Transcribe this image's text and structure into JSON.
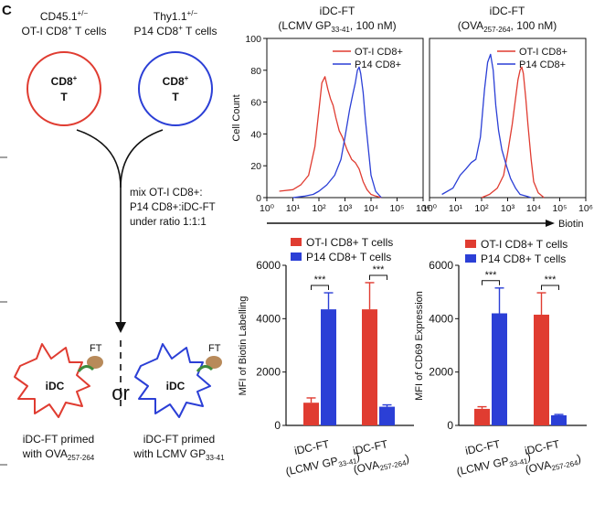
{
  "panel_letter": "C",
  "schematic": {
    "cell_left": {
      "line1": "CD45.1",
      "line1_sup": "+/−",
      "line2": "OT-I CD8",
      "line2_sup": "+",
      "line2_tail": " T cells",
      "inner1": "CD8",
      "inner_sup": "+",
      "inner2": "T",
      "color": "#e03c31"
    },
    "cell_right": {
      "line1": "Thy1.1",
      "line1_sup": "+/−",
      "line2": "P14 CD8",
      "line2_sup": "+",
      "line2_tail": " T cells",
      "inner1": "CD8",
      "inner_sup": "+",
      "inner2": "T",
      "color": "#2b3fd6"
    },
    "mix_text": [
      "mix OT-I CD8+:",
      "P14 CD8+:iDC-FT",
      "under ratio 1:1:1"
    ],
    "or_text": "or",
    "dc_left": {
      "label": "iDC",
      "ft": "FT",
      "cap1": "iDC-FT primed",
      "cap2": "with OVA",
      "cap2_sub": "257-264",
      "color": "#e03c31"
    },
    "dc_right": {
      "label": "iDC",
      "ft": "FT",
      "cap1": "iDC-FT primed",
      "cap2": "with LCMV GP",
      "cap2_sub": "33-41",
      "color": "#2b3fd6"
    }
  },
  "chart_data": [
    {
      "type": "line",
      "title": "iDC-FT",
      "subtitle": "(LCMV GP33-41, 100 nM)",
      "subtitle_parts": {
        "pre": "(LCMV GP",
        "sub": "33-41",
        "post": ", 100 nM)"
      },
      "ylabel": "Cell Count",
      "xlabel": "Biotin",
      "x_scale": "log",
      "xlim": [
        1,
        1000000
      ],
      "ylim": [
        0,
        100
      ],
      "yticks": [
        0,
        20,
        40,
        60,
        80,
        100
      ],
      "xtick_labels": [
        "10⁰",
        "10¹",
        "10²",
        "10³",
        "10⁴",
        "10⁵",
        "10⁶"
      ],
      "legend_position": "top-right",
      "series": [
        {
          "name": "OT-I CD8+",
          "color": "#e03c31",
          "x": [
            3,
            10,
            20,
            40,
            70,
            100,
            130,
            170,
            220,
            280,
            350,
            450,
            600,
            800,
            1200,
            1800,
            2500,
            3500,
            5000,
            7000,
            10000,
            15000,
            25000
          ],
          "y": [
            4,
            5,
            8,
            14,
            32,
            55,
            72,
            76,
            68,
            62,
            58,
            50,
            42,
            38,
            30,
            24,
            22,
            18,
            10,
            5,
            2,
            1,
            0
          ]
        },
        {
          "name": "P14 CD8+",
          "color": "#2b3fd6",
          "x": [
            10,
            30,
            60,
            100,
            200,
            400,
            700,
            1000,
            1500,
            2000,
            2500,
            3000,
            3500,
            4000,
            5000,
            6000,
            8000,
            10000,
            15000,
            25000
          ],
          "y": [
            0,
            1,
            2,
            4,
            8,
            14,
            24,
            38,
            55,
            65,
            72,
            80,
            82,
            78,
            66,
            50,
            30,
            14,
            4,
            0
          ]
        }
      ]
    },
    {
      "type": "line",
      "title": "iDC-FT",
      "subtitle": "(OVA257-264, 100 nM)",
      "subtitle_parts": {
        "pre": "(OVA",
        "sub": "257-264",
        "post": ", 100 nM)"
      },
      "x_scale": "log",
      "xlim": [
        1,
        1000000
      ],
      "ylim": [
        0,
        100
      ],
      "legend_position": "top-right",
      "series": [
        {
          "name": "OT-I CD8+",
          "color": "#e03c31",
          "x": [
            100,
            200,
            400,
            700,
            1000,
            1500,
            2000,
            2500,
            3000,
            3500,
            4000,
            5000,
            6000,
            8000,
            10000,
            15000,
            25000
          ],
          "y": [
            0,
            2,
            6,
            14,
            28,
            46,
            62,
            74,
            80,
            82,
            78,
            62,
            46,
            24,
            10,
            3,
            0
          ]
        },
        {
          "name": "P14 CD8+",
          "color": "#2b3fd6",
          "x": [
            3,
            8,
            15,
            25,
            40,
            60,
            90,
            130,
            170,
            220,
            280,
            350,
            450,
            600,
            900,
            1300,
            2000,
            3000,
            5000,
            8000
          ],
          "y": [
            2,
            6,
            14,
            18,
            22,
            24,
            38,
            68,
            85,
            90,
            80,
            58,
            42,
            30,
            20,
            12,
            6,
            2,
            1,
            0
          ]
        }
      ]
    },
    {
      "type": "bar",
      "ylabel": "MFI of Biotin Labelling",
      "ylim": [
        0,
        6000
      ],
      "yticks": [
        0,
        2000,
        4000,
        6000
      ],
      "legend": [
        "OT-I CD8+ T cells",
        "P14 CD8+ T cells"
      ],
      "legend_position": "top",
      "groups": [
        {
          "label1": "iDC-FT",
          "label2": "(LCMV GP",
          "label2_sub": "33-41",
          "label2_post": ")"
        },
        {
          "label1": "iDC-FT",
          "label2": "(OVA",
          "label2_sub": "257-264",
          "label2_post": ")"
        }
      ],
      "series": [
        {
          "name": "OT-I CD8+ T cells",
          "color": "#e03c31",
          "values": [
            850,
            4350
          ],
          "errors": [
            180,
            1000
          ]
        },
        {
          "name": "P14 CD8+ T cells",
          "color": "#2b3fd6",
          "values": [
            4350,
            700
          ],
          "errors": [
            620,
            70
          ]
        }
      ],
      "significance": [
        "***",
        "***"
      ]
    },
    {
      "type": "bar",
      "ylabel": "MFI of CD69 Expression",
      "ylim": [
        0,
        6000
      ],
      "yticks": [
        0,
        2000,
        4000,
        6000
      ],
      "legend": [
        "OT-I CD8+ T cells",
        "P14 CD8+ T cells"
      ],
      "legend_position": "top",
      "groups": [
        {
          "label1": "iDC-FT",
          "label2": "(LCMV GP",
          "label2_sub": "33-41",
          "label2_post": ")"
        },
        {
          "label1": "iDC-FT",
          "label2": "(OVA",
          "label2_sub": "257-264",
          "label2_post": ")"
        }
      ],
      "series": [
        {
          "name": "OT-I CD8+ T cells",
          "color": "#e03c31",
          "values": [
            620,
            4150
          ],
          "errors": [
            80,
            820
          ]
        },
        {
          "name": "P14 CD8+ T cells",
          "color": "#2b3fd6",
          "values": [
            4200,
            380
          ],
          "errors": [
            950,
            30
          ]
        }
      ],
      "significance": [
        "***",
        "***"
      ]
    }
  ]
}
